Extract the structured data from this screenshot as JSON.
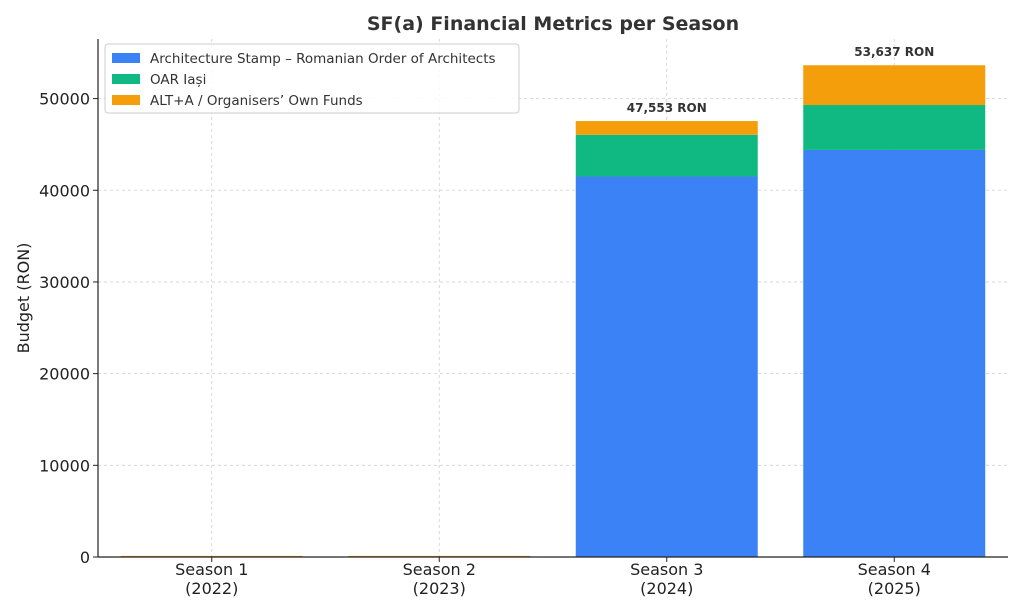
{
  "chart_data": {
    "type": "bar",
    "stacked": true,
    "title": "SF(a) Financial Metrics per Season",
    "xlabel": "",
    "ylabel": "Budget (RON)",
    "categories": [
      [
        "Season 1",
        "(2022)"
      ],
      [
        "Season 2",
        "(2023)"
      ],
      [
        "Season 3",
        "(2024)"
      ],
      [
        "Season 4",
        "(2025)"
      ]
    ],
    "series": [
      {
        "name": "Architecture Stamp – Romanian Order of Architects",
        "color": "#3b82f6",
        "values": [
          0,
          0,
          41500,
          44400
        ]
      },
      {
        "name": "OAR Iași",
        "color": "#10b981",
        "values": [
          0,
          0,
          4550,
          4900
        ]
      },
      {
        "name": "ALT+A / Organisers’ Own Funds",
        "color": "#f59e0b",
        "values": [
          120,
          120,
          1503,
          4337
        ]
      }
    ],
    "totals": [
      "",
      "",
      "47,553 RON",
      "53,637 RON"
    ],
    "yticks": [
      0,
      10000,
      20000,
      30000,
      40000,
      50000
    ],
    "ylim": [
      0,
      56500
    ],
    "grid": true,
    "legend_position": "top-left"
  }
}
